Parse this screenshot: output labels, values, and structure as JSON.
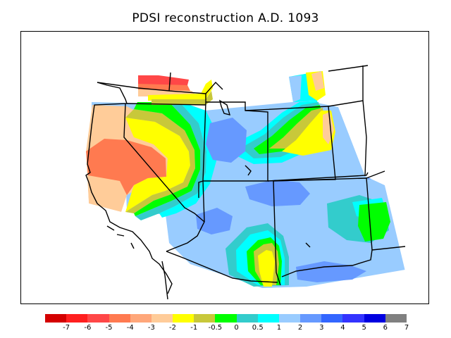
{
  "title": "PDSI reconstruction A.D. 1093",
  "legend": {
    "colors": [
      "#d40000",
      "#ff1f1f",
      "#ff4747",
      "#ff7a50",
      "#ffa77a",
      "#ffcc99",
      "#ffff00",
      "#c8c83a",
      "#00ff00",
      "#33cccc",
      "#00ffff",
      "#99ccff",
      "#6699ff",
      "#3366ff",
      "#3333ff",
      "#0000e0",
      "#808080"
    ],
    "tick_labels": [
      "-7",
      "-6",
      "-5",
      "-4",
      "-3",
      "-2",
      "-1",
      "-0.5",
      "0",
      "0.5",
      "1",
      "2",
      "3",
      "4",
      "5",
      "6",
      "7"
    ]
  },
  "map": {
    "variable": "PDSI",
    "year": "A.D. 1093",
    "region_colors": {
      "dry_strong": "#ff4747",
      "dry_moderate": "#ff7a50",
      "dry_mild": "#ffcc99",
      "dry_light": "#ffff00",
      "near_normal": "#c8c83a",
      "zero": "#00ff00",
      "wet_slight": "#33cccc",
      "wet_mild": "#00ffff",
      "wet_moderate": "#99ccff",
      "wet_medium": "#6699ff",
      "wet_high": "#3366ff"
    }
  }
}
